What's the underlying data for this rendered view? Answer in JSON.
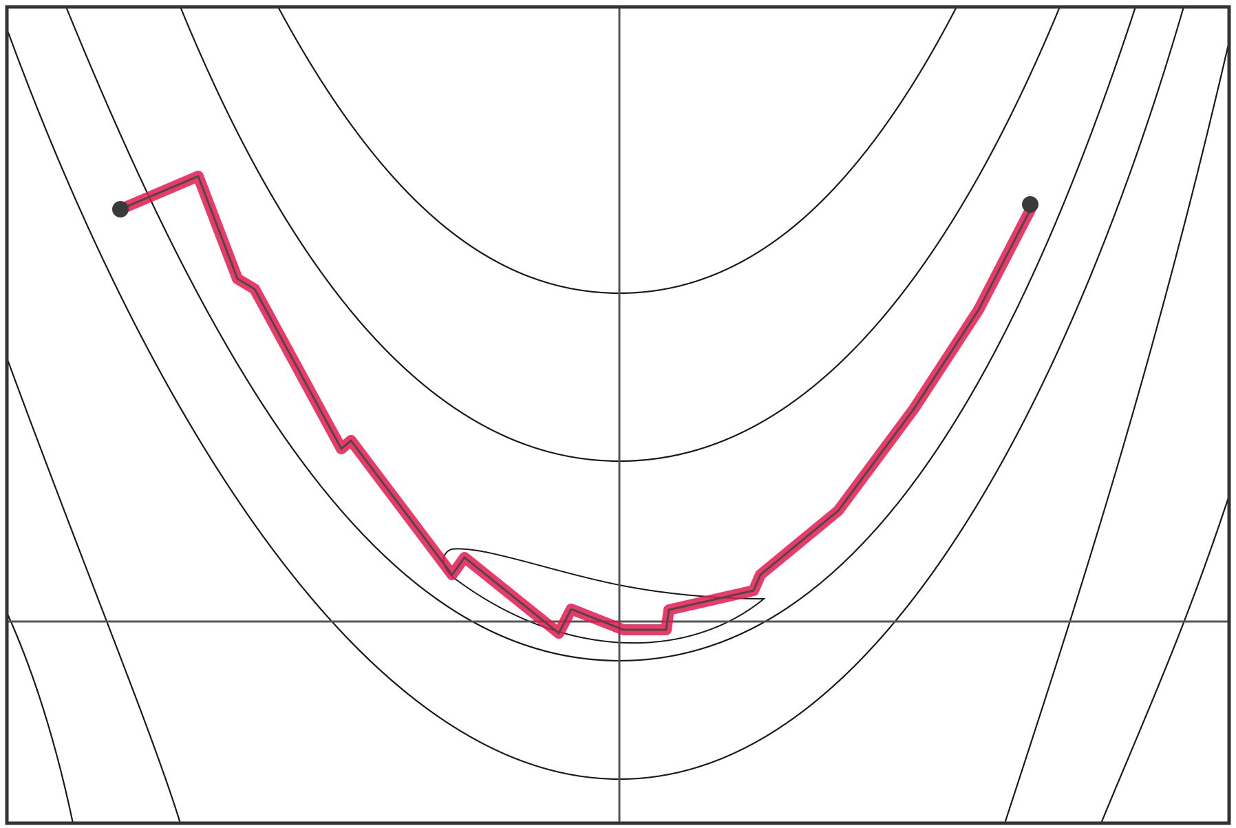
{
  "diagram": {
    "kind": "contour-plot-with-optimization-path",
    "contour_count": 8,
    "path_segment_count": 18,
    "start_marker": "start-point",
    "end_marker": "end-point",
    "colors": {
      "background": "#ffffff",
      "frame": "#333333",
      "axes": "#555555",
      "contours": "#1a1a1a",
      "path_highlight": "#e8174f",
      "path_core": "#4a4a4a",
      "markers": "#3a3a3a"
    }
  }
}
